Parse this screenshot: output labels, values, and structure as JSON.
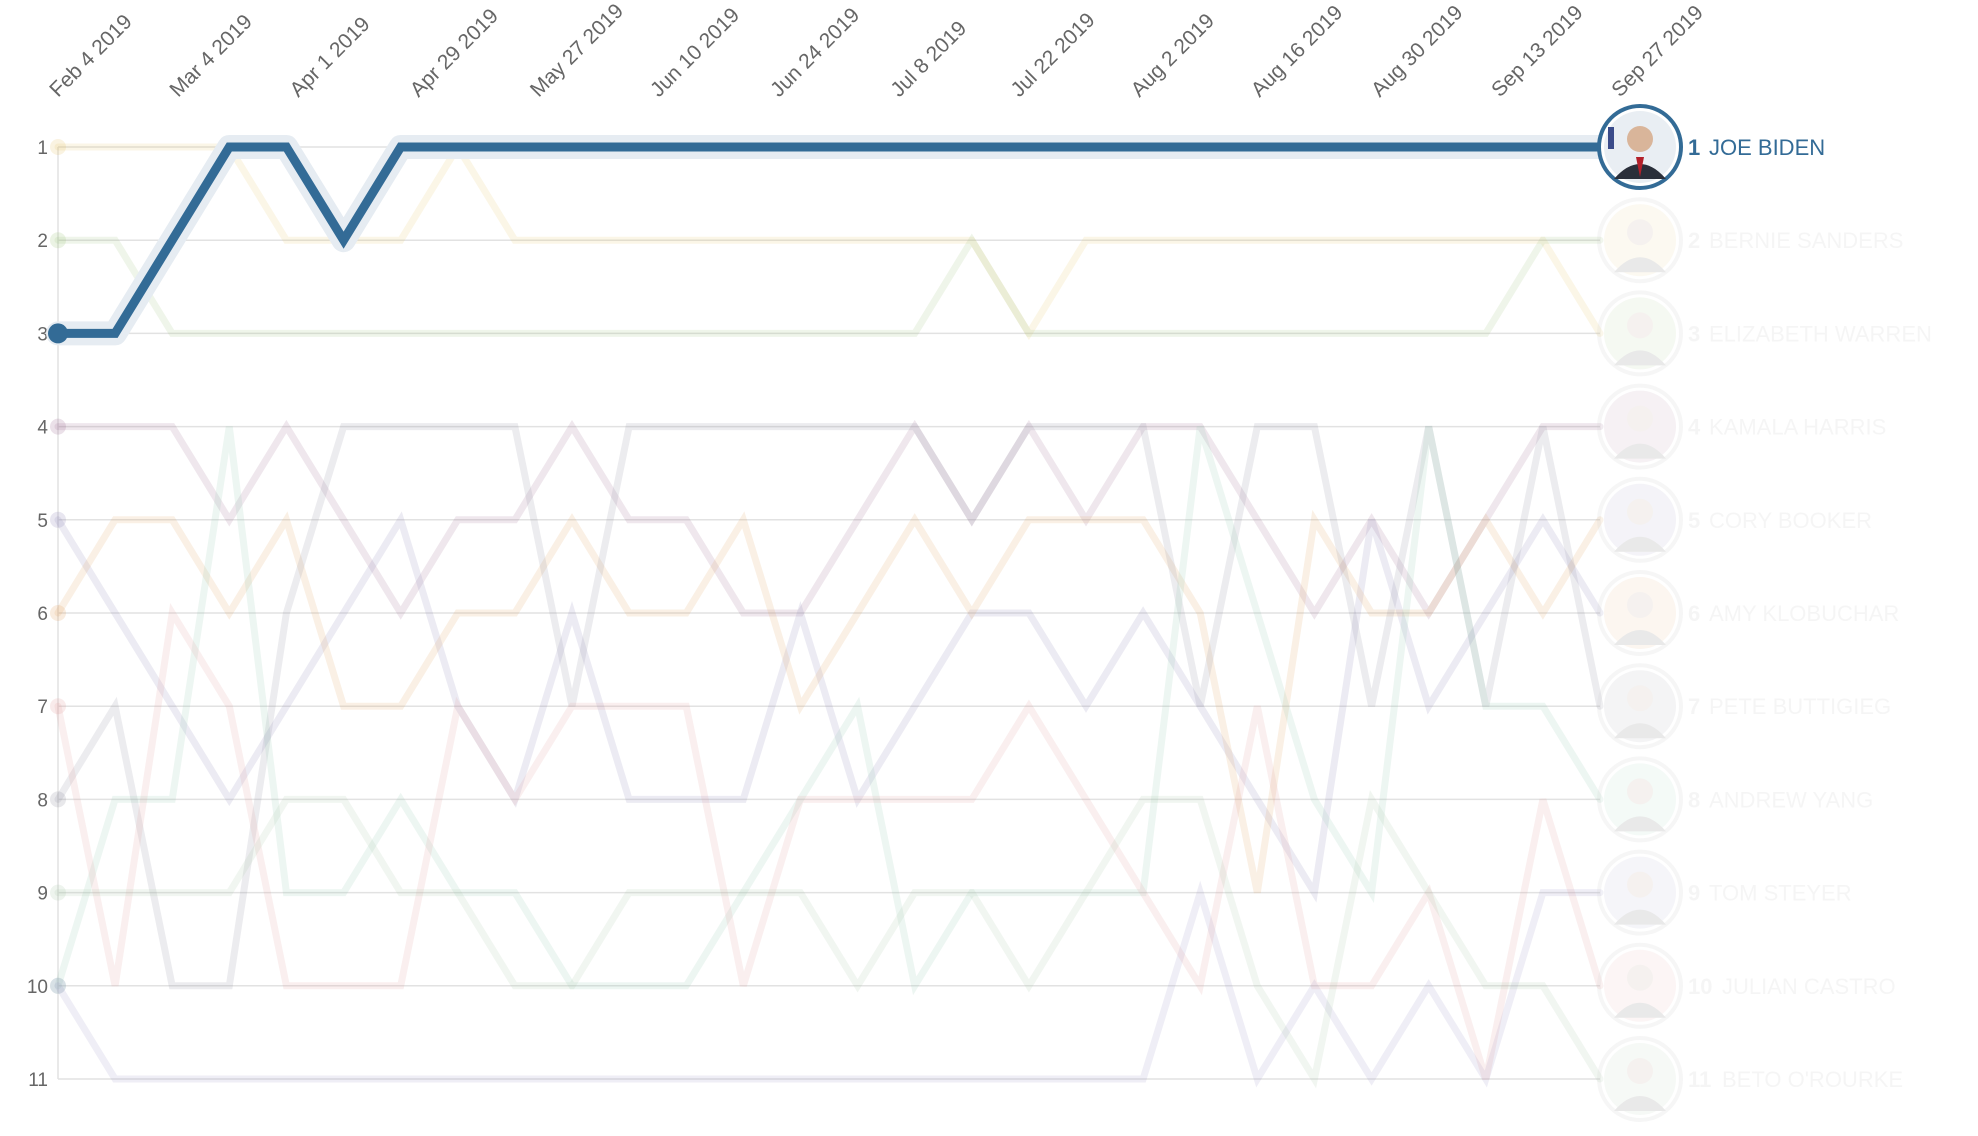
{
  "chart_data": {
    "type": "line",
    "subtype": "bump",
    "x_tick_labels": [
      "Feb 4 2019",
      "Mar 4 2019",
      "Apr 1 2019",
      "Apr 29 2019",
      "May 27 2019",
      "Jun 10 2019",
      "Jun 24 2019",
      "Jul 8 2019",
      "Jul 22 2019",
      "Aug 2 2019",
      "Aug 16 2019",
      "Aug 30 2019",
      "Sep 13 2019",
      "Sep 27 2019"
    ],
    "y_tick_labels": [
      1,
      2,
      3,
      4,
      5,
      6,
      7,
      8,
      9,
      10,
      11
    ],
    "ylim": [
      1,
      11
    ],
    "y_inverted": true,
    "grid": true,
    "highlighted_series": "JOE BIDEN",
    "series": [
      {
        "name": "JOE BIDEN",
        "rank": 1,
        "color": "#336b96",
        "values": [
          3,
          3,
          2,
          1,
          1,
          2,
          1,
          1,
          1,
          1,
          1,
          1,
          1,
          1,
          1,
          1,
          1,
          1,
          1,
          1,
          1,
          1,
          1,
          1,
          1,
          1,
          1,
          1
        ]
      },
      {
        "name": "BERNIE SANDERS",
        "rank": 2,
        "color": "#e8c46a",
        "values": [
          1,
          1,
          1,
          1,
          2,
          2,
          2,
          1,
          2,
          2,
          2,
          2,
          2,
          2,
          2,
          2,
          2,
          3,
          2,
          2,
          2,
          2,
          2,
          2,
          2,
          2,
          2,
          3
        ]
      },
      {
        "name": "ELIZABETH WARREN",
        "rank": 3,
        "color": "#9cc37a",
        "values": [
          2,
          2,
          3,
          3,
          3,
          3,
          3,
          3,
          3,
          3,
          3,
          3,
          3,
          3,
          3,
          3,
          2,
          3,
          3,
          3,
          3,
          3,
          3,
          3,
          3,
          3,
          2,
          2
        ]
      },
      {
        "name": "KAMALA HARRIS",
        "rank": 4,
        "color": "#9d6a8f",
        "values": [
          4,
          4,
          4,
          5,
          4,
          5,
          6,
          5,
          5,
          4,
          5,
          5,
          6,
          6,
          5,
          4,
          5,
          4,
          5,
          4,
          4,
          5,
          6,
          5,
          6,
          5,
          4,
          4
        ]
      },
      {
        "name": "CORY BOOKER",
        "rank": 5,
        "color": "#8a84b4",
        "values": [
          5,
          6,
          7,
          8,
          7,
          6,
          5,
          7,
          8,
          6,
          8,
          8,
          8,
          6,
          8,
          7,
          6,
          6,
          7,
          6,
          7,
          8,
          9,
          5,
          7,
          6,
          5,
          6
        ]
      },
      {
        "name": "AMY KLOBUCHAR",
        "rank": 6,
        "color": "#e0a060",
        "values": [
          6,
          5,
          5,
          6,
          5,
          7,
          7,
          6,
          6,
          5,
          6,
          6,
          5,
          7,
          6,
          5,
          6,
          5,
          5,
          5,
          6,
          9,
          5,
          6,
          6,
          5,
          6,
          5
        ]
      },
      {
        "name": "PETE BUTTIGIEG",
        "rank": 7,
        "color": "#8a8a9a",
        "values": [
          8,
          7,
          10,
          10,
          6,
          4,
          4,
          4,
          4,
          7,
          4,
          4,
          4,
          4,
          4,
          4,
          5,
          4,
          4,
          4,
          7,
          4,
          4,
          7,
          4,
          7,
          4,
          7
        ]
      },
      {
        "name": "ANDREW YANG",
        "rank": 8,
        "color": "#8ccab0",
        "values": [
          10,
          8,
          8,
          4,
          9,
          9,
          8,
          9,
          9,
          10,
          10,
          10,
          9,
          8,
          7,
          10,
          9,
          9,
          9,
          9,
          4,
          6,
          8,
          9,
          4,
          7,
          7,
          8
        ]
      },
      {
        "name": "TOM STEYER",
        "rank": 9,
        "color": "#9a94c4",
        "values": [
          10,
          11,
          11,
          11,
          11,
          11,
          11,
          11,
          11,
          11,
          11,
          11,
          11,
          11,
          11,
          11,
          11,
          11,
          11,
          11,
          9,
          11,
          10,
          11,
          10,
          11,
          9,
          9
        ]
      },
      {
        "name": "JULIAN CASTRO",
        "rank": 10,
        "color": "#e09a9a",
        "values": [
          7,
          10,
          6,
          7,
          10,
          10,
          10,
          7,
          8,
          7,
          7,
          7,
          10,
          8,
          8,
          8,
          8,
          7,
          8,
          9,
          10,
          7,
          10,
          10,
          9,
          11,
          8,
          10
        ]
      },
      {
        "name": "BETO O'ROURKE",
        "rank": 11,
        "color": "#a8c8a8",
        "values": [
          9,
          9,
          9,
          9,
          8,
          8,
          9,
          9,
          10,
          10,
          9,
          9,
          9,
          9,
          10,
          9,
          9,
          10,
          9,
          8,
          8,
          10,
          11,
          8,
          9,
          10,
          10,
          11
        ]
      }
    ]
  }
}
